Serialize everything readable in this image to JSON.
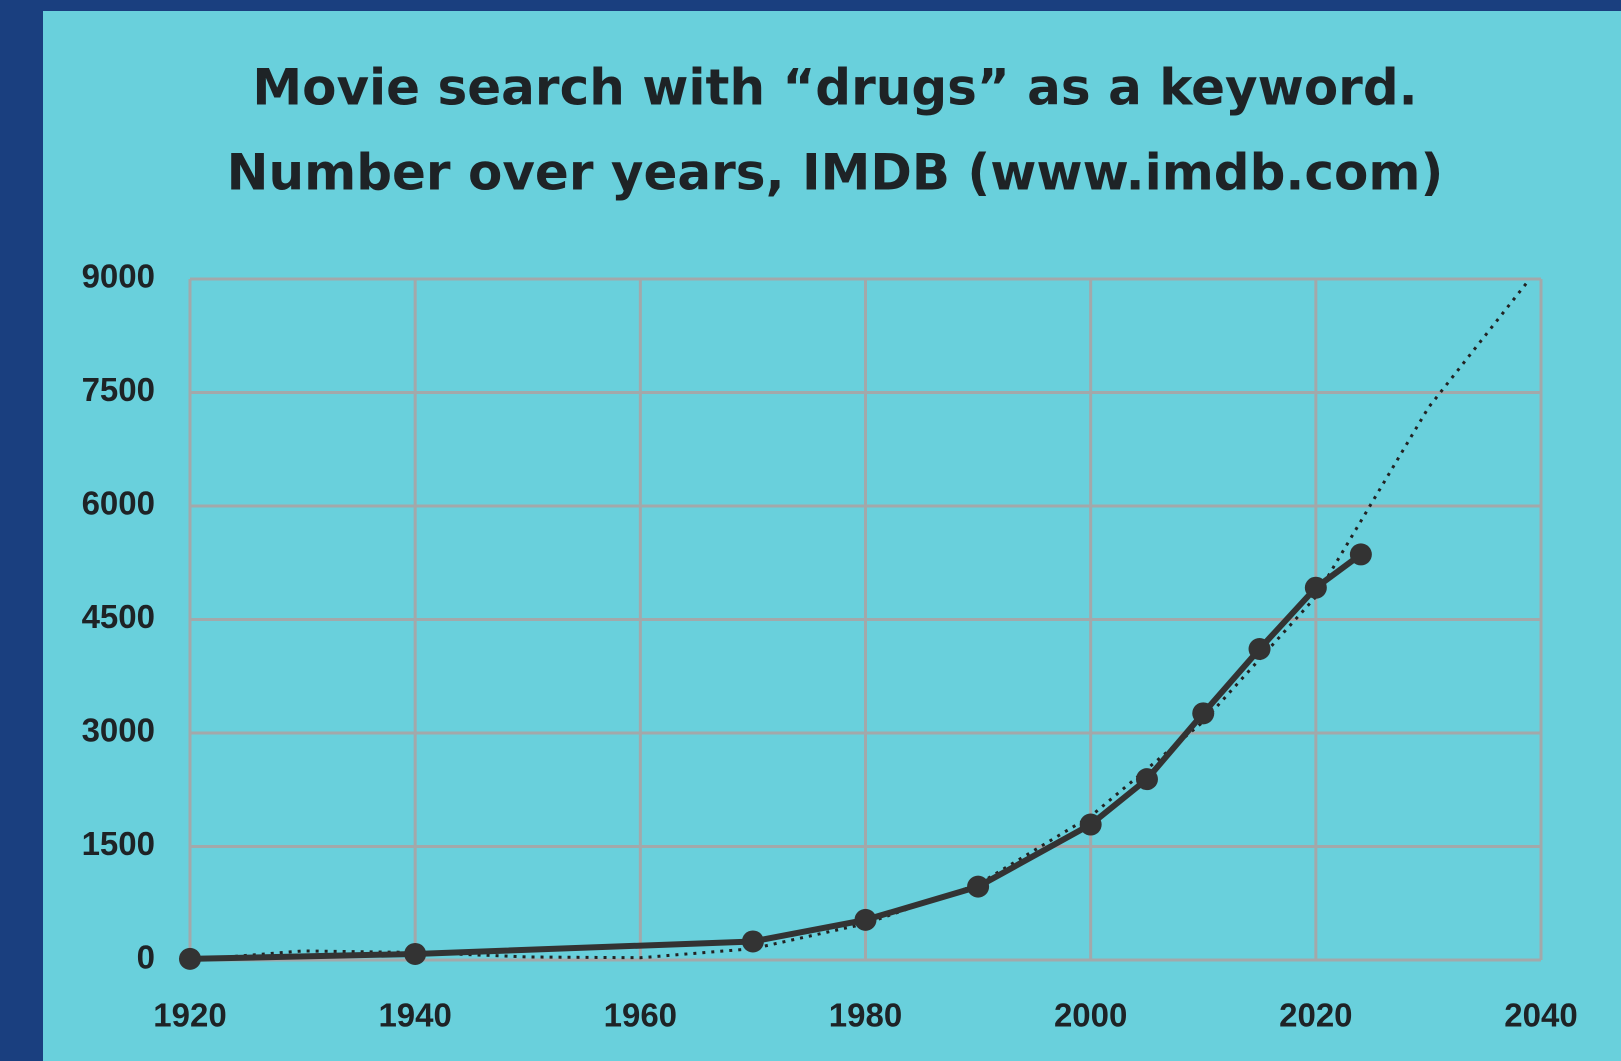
{
  "chart_data": {
    "type": "line",
    "title": "Movie search with “drugs” as a keyword.",
    "subtitle": "Number over years, IMDB (www.imdb.com)",
    "x": [
      1920,
      1940,
      1970,
      1980,
      1990,
      2000,
      2005,
      2010,
      2015,
      2020,
      2024
    ],
    "series": [
      {
        "color": "#333333",
        "values": [
          15,
          80,
          245,
          530,
          970,
          1790,
          2390,
          3260,
          4110,
          4920,
          5360
        ]
      }
    ],
    "trend": {
      "color": "#222222",
      "style": "dotted",
      "x": [
        1920,
        1930,
        1940,
        1950,
        1960,
        1970,
        1980,
        1990,
        2000,
        2010,
        2020,
        2030,
        2039
      ],
      "values": [
        0,
        120,
        100,
        40,
        30,
        150,
        480,
        1000,
        1900,
        3150,
        4800,
        7300,
        9000
      ]
    },
    "xlim": [
      1920,
      2040
    ],
    "xticks": [
      1920,
      1940,
      1960,
      1980,
      2000,
      2020,
      2040
    ],
    "ylim": [
      0,
      9000
    ],
    "yticks": [
      0,
      1500,
      3000,
      4500,
      6000,
      7500,
      9000
    ],
    "grid": true
  }
}
